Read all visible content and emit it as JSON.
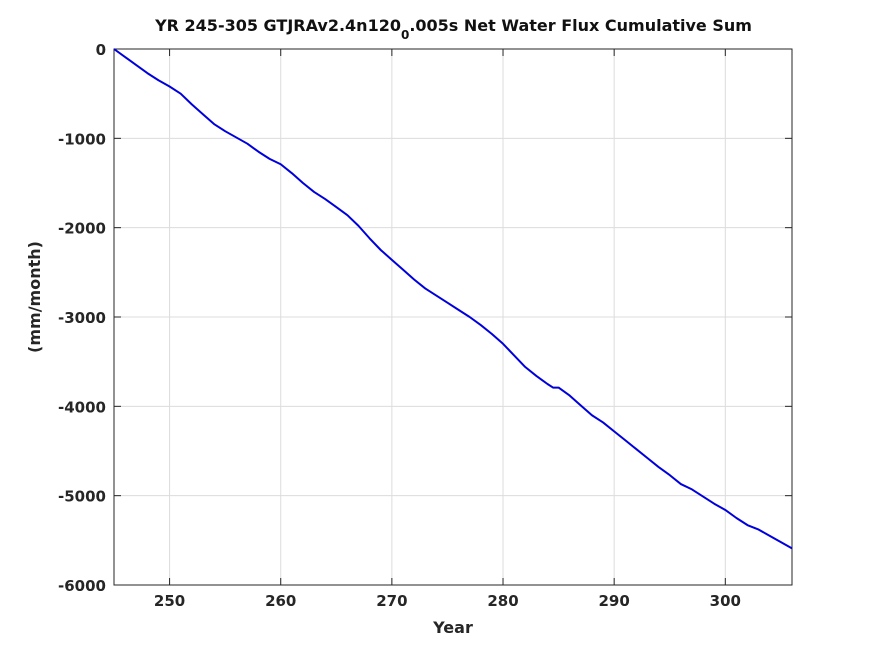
{
  "chart_data": {
    "type": "line",
    "title": {
      "before_subscript": "YR 245-305 GTJRAv2.4n120",
      "subscript": "0",
      "after_subscript": ".005s Net Water Flux Cumulative Sum"
    },
    "xlabel": "Year",
    "ylabel": "(mm/month)",
    "xlim": [
      245,
      306
    ],
    "ylim": [
      -6000,
      0
    ],
    "xticks": [
      250,
      260,
      270,
      280,
      290,
      300
    ],
    "yticks": [
      0,
      -1000,
      -2000,
      -3000,
      -4000,
      -5000,
      -6000
    ],
    "xtick_labels": [
      "250",
      "260",
      "270",
      "280",
      "290",
      "300"
    ],
    "ytick_labels": [
      "0",
      "-1000",
      "-2000",
      "-3000",
      "-4000",
      "-5000",
      "-6000"
    ],
    "grid": true,
    "line_color": "#0000dd",
    "series": [
      {
        "x": [
          245,
          246,
          247,
          248,
          249,
          250,
          251,
          252,
          253,
          254,
          255,
          256,
          257,
          258,
          259,
          260,
          261,
          262,
          263,
          264,
          265,
          266,
          267,
          268,
          269,
          270,
          271,
          272,
          273,
          274,
          275,
          276,
          277,
          278,
          279,
          280,
          281,
          282,
          283,
          284,
          284.5,
          285,
          286,
          287,
          288,
          289,
          290,
          291,
          292,
          293,
          294,
          295,
          296,
          297,
          298,
          299,
          300,
          301,
          302,
          303,
          304,
          305,
          306
        ],
        "y": [
          0,
          -90,
          -180,
          -270,
          -350,
          -420,
          -500,
          -620,
          -730,
          -840,
          -920,
          -990,
          -1060,
          -1150,
          -1230,
          -1290,
          -1390,
          -1500,
          -1600,
          -1680,
          -1770,
          -1860,
          -1980,
          -2120,
          -2250,
          -2360,
          -2470,
          -2580,
          -2680,
          -2760,
          -2840,
          -2920,
          -3000,
          -3090,
          -3190,
          -3300,
          -3430,
          -3560,
          -3660,
          -3750,
          -3790,
          -3790,
          -3880,
          -3990,
          -4100,
          -4180,
          -4280,
          -4380,
          -4480,
          -4580,
          -4680,
          -4770,
          -4870,
          -4930,
          -5010,
          -5090,
          -5160,
          -5250,
          -5330,
          -5380,
          -5450,
          -5520,
          -5590
        ]
      }
    ]
  }
}
